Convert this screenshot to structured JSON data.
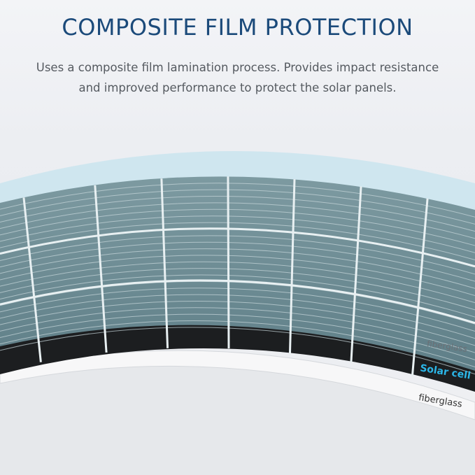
{
  "header": {
    "title": "COMPOSITE FILM PROTECTION",
    "description_line1": "Uses a composite film lamination process. Provides impact resistance",
    "description_line2": "and improved performance to protect the solar panels."
  },
  "layers": [
    {
      "label": "fiberglass",
      "color": "#6a7076"
    },
    {
      "label": "Solar cell",
      "color": "#2bb6e8"
    },
    {
      "label": "fiberglass",
      "color": "#333333"
    }
  ],
  "colors": {
    "title": "#1b4a7a",
    "film": "#cfe6ef",
    "cell": "#6e8f96",
    "backsheet": "#1c1e20"
  }
}
